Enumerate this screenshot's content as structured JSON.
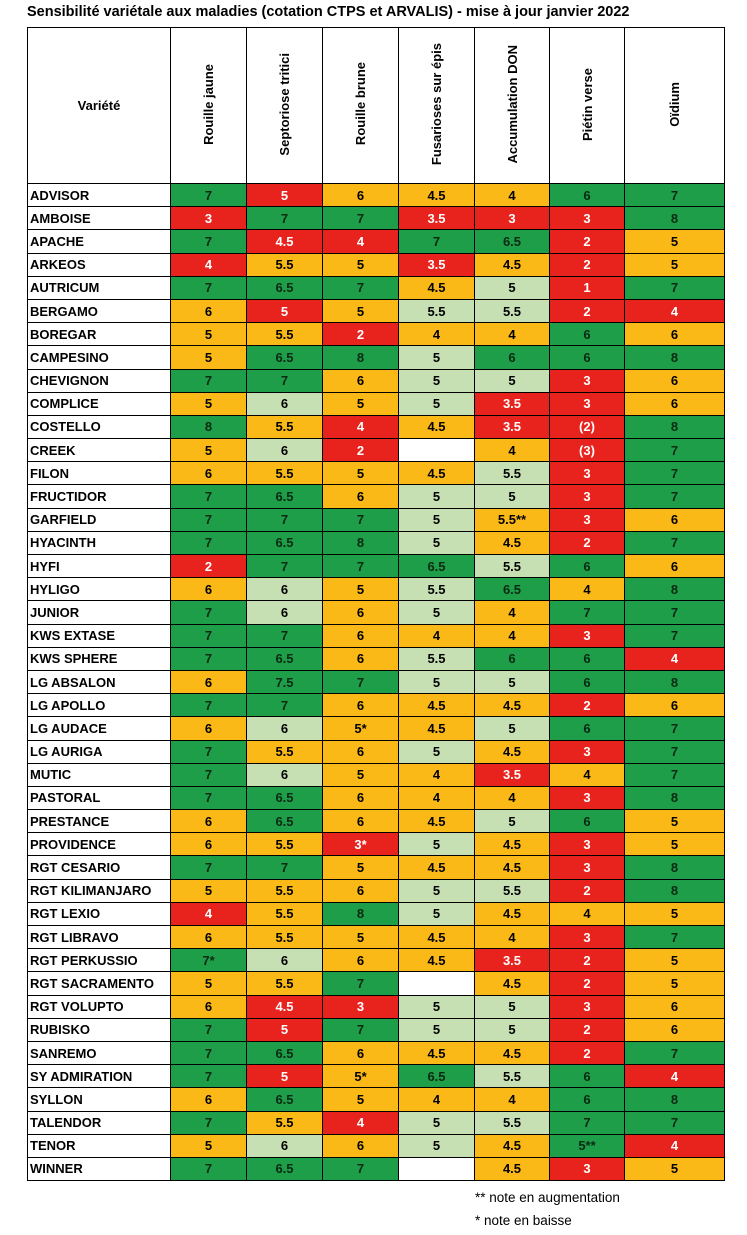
{
  "title": "Sensibilité variétale aux maladies (cotation CTPS et ARVALIS) - mise à jour janvier 2022",
  "table": {
    "header": [
      "Variété",
      "Rouille jaune",
      "Septoriose tritici",
      "Rouille brune",
      "Fusarioses sur épis",
      "Accumulation DON",
      "Piétin verse",
      "Oïdium"
    ],
    "palette": {
      "green": "#1f9e4a",
      "red": "#e8221d",
      "orange": "#fbb918",
      "lightgreen": "#c6e0b4",
      "white": "#ffffff"
    },
    "rows": [
      {
        "name": "ADVISOR",
        "values": [
          "7",
          "5",
          "6",
          "4.5",
          "4",
          "6",
          "7"
        ],
        "colors": [
          "green",
          "red",
          "orange",
          "orange",
          "orange",
          "green",
          "green"
        ]
      },
      {
        "name": "AMBOISE",
        "values": [
          "3",
          "7",
          "7",
          "3.5",
          "3",
          "3",
          "8"
        ],
        "colors": [
          "red",
          "green",
          "green",
          "red",
          "red",
          "red",
          "green"
        ]
      },
      {
        "name": "APACHE",
        "values": [
          "7",
          "4.5",
          "4",
          "7",
          "6.5",
          "2",
          "5"
        ],
        "colors": [
          "green",
          "red",
          "red",
          "green",
          "green",
          "red",
          "orange"
        ]
      },
      {
        "name": "ARKEOS",
        "values": [
          "4",
          "5.5",
          "5",
          "3.5",
          "4.5",
          "2",
          "5"
        ],
        "colors": [
          "red",
          "orange",
          "orange",
          "red",
          "orange",
          "red",
          "orange"
        ]
      },
      {
        "name": "AUTRICUM",
        "values": [
          "7",
          "6.5",
          "7",
          "4.5",
          "5",
          "1",
          "7"
        ],
        "colors": [
          "green",
          "green",
          "green",
          "orange",
          "lightgreen",
          "red",
          "green"
        ]
      },
      {
        "name": "BERGAMO",
        "values": [
          "6",
          "5",
          "5",
          "5.5",
          "5.5",
          "2",
          "4"
        ],
        "colors": [
          "orange",
          "red",
          "orange",
          "lightgreen",
          "lightgreen",
          "red",
          "red"
        ]
      },
      {
        "name": "BOREGAR",
        "values": [
          "5",
          "5.5",
          "2",
          "4",
          "4",
          "6",
          "6"
        ],
        "colors": [
          "orange",
          "orange",
          "red",
          "orange",
          "orange",
          "green",
          "orange"
        ]
      },
      {
        "name": "CAMPESINO",
        "values": [
          "5",
          "6.5",
          "8",
          "5",
          "6",
          "6",
          "8"
        ],
        "colors": [
          "orange",
          "green",
          "green",
          "lightgreen",
          "green",
          "green",
          "green"
        ]
      },
      {
        "name": "CHEVIGNON",
        "values": [
          "7",
          "7",
          "6",
          "5",
          "5",
          "3",
          "6"
        ],
        "colors": [
          "green",
          "green",
          "orange",
          "lightgreen",
          "lightgreen",
          "red",
          "orange"
        ]
      },
      {
        "name": "COMPLICE",
        "values": [
          "5",
          "6",
          "5",
          "5",
          "3.5",
          "3",
          "6"
        ],
        "colors": [
          "orange",
          "lightgreen",
          "orange",
          "lightgreen",
          "red",
          "red",
          "orange"
        ]
      },
      {
        "name": "COSTELLO",
        "values": [
          "8",
          "5.5",
          "4",
          "4.5",
          "3.5",
          "(2)",
          "8"
        ],
        "colors": [
          "green",
          "orange",
          "red",
          "orange",
          "red",
          "red",
          "green"
        ]
      },
      {
        "name": "CREEK",
        "values": [
          "5",
          "6",
          "2",
          null,
          "4",
          "(3)",
          "7"
        ],
        "colors": [
          "orange",
          "lightgreen",
          "red",
          "white",
          "orange",
          "red",
          "green"
        ]
      },
      {
        "name": "FILON",
        "values": [
          "6",
          "5.5",
          "5",
          "4.5",
          "5.5",
          "3",
          "7"
        ],
        "colors": [
          "orange",
          "orange",
          "orange",
          "orange",
          "lightgreen",
          "red",
          "green"
        ]
      },
      {
        "name": "FRUCTIDOR",
        "values": [
          "7",
          "6.5",
          "6",
          "5",
          "5",
          "3",
          "7"
        ],
        "colors": [
          "green",
          "green",
          "orange",
          "lightgreen",
          "lightgreen",
          "red",
          "green"
        ]
      },
      {
        "name": "GARFIELD",
        "values": [
          "7",
          "7",
          "7",
          "5",
          "5.5**",
          "3",
          "6"
        ],
        "colors": [
          "green",
          "green",
          "green",
          "lightgreen",
          "orange",
          "red",
          "orange"
        ]
      },
      {
        "name": "HYACINTH",
        "values": [
          "7",
          "6.5",
          "8",
          "5",
          "4.5",
          "2",
          "7"
        ],
        "colors": [
          "green",
          "green",
          "green",
          "lightgreen",
          "orange",
          "red",
          "green"
        ]
      },
      {
        "name": "HYFI",
        "values": [
          "2",
          "7",
          "7",
          "6.5",
          "5.5",
          "6",
          "6"
        ],
        "colors": [
          "red",
          "green",
          "green",
          "green",
          "lightgreen",
          "green",
          "orange"
        ]
      },
      {
        "name": "HYLIGO",
        "values": [
          "6",
          "6",
          "5",
          "5.5",
          "6.5",
          "4",
          "8"
        ],
        "colors": [
          "orange",
          "lightgreen",
          "orange",
          "lightgreen",
          "green",
          "orange",
          "green"
        ]
      },
      {
        "name": "JUNIOR",
        "values": [
          "7",
          "6",
          "6",
          "5",
          "4",
          "7",
          "7"
        ],
        "colors": [
          "green",
          "lightgreen",
          "orange",
          "lightgreen",
          "orange",
          "green",
          "green"
        ]
      },
      {
        "name": "KWS EXTASE",
        "values": [
          "7",
          "7",
          "6",
          "4",
          "4",
          "3",
          "7"
        ],
        "colors": [
          "green",
          "green",
          "orange",
          "orange",
          "orange",
          "red",
          "green"
        ]
      },
      {
        "name": "KWS SPHERE",
        "values": [
          "7",
          "6.5",
          "6",
          "5.5",
          "6",
          "6",
          "4"
        ],
        "colors": [
          "green",
          "green",
          "orange",
          "lightgreen",
          "green",
          "green",
          "red"
        ]
      },
      {
        "name": "LG ABSALON",
        "values": [
          "6",
          "7.5",
          "7",
          "5",
          "5",
          "6",
          "8"
        ],
        "colors": [
          "orange",
          "green",
          "green",
          "lightgreen",
          "lightgreen",
          "green",
          "green"
        ]
      },
      {
        "name": "LG APOLLO",
        "values": [
          "7",
          "7",
          "6",
          "4.5",
          "4.5",
          "2",
          "6"
        ],
        "colors": [
          "green",
          "green",
          "orange",
          "orange",
          "orange",
          "red",
          "orange"
        ]
      },
      {
        "name": "LG AUDACE",
        "values": [
          "6",
          "6",
          "5*",
          "4.5",
          "5",
          "6",
          "7"
        ],
        "colors": [
          "orange",
          "lightgreen",
          "orange",
          "orange",
          "lightgreen",
          "green",
          "green"
        ]
      },
      {
        "name": "LG AURIGA",
        "values": [
          "7",
          "5.5",
          "6",
          "5",
          "4.5",
          "3",
          "7"
        ],
        "colors": [
          "green",
          "orange",
          "orange",
          "lightgreen",
          "orange",
          "red",
          "green"
        ]
      },
      {
        "name": "MUTIC",
        "values": [
          "7",
          "6",
          "5",
          "4",
          "3.5",
          "4",
          "7"
        ],
        "colors": [
          "green",
          "lightgreen",
          "orange",
          "orange",
          "red",
          "orange",
          "green"
        ]
      },
      {
        "name": "PASTORAL",
        "values": [
          "7",
          "6.5",
          "6",
          "4",
          "4",
          "3",
          "8"
        ],
        "colors": [
          "green",
          "green",
          "orange",
          "orange",
          "orange",
          "red",
          "green"
        ]
      },
      {
        "name": "PRESTANCE",
        "values": [
          "6",
          "6.5",
          "6",
          "4.5",
          "5",
          "6",
          "5"
        ],
        "colors": [
          "orange",
          "green",
          "orange",
          "orange",
          "lightgreen",
          "green",
          "orange"
        ]
      },
      {
        "name": "PROVIDENCE",
        "values": [
          "6",
          "5.5",
          "3*",
          "5",
          "4.5",
          "3",
          "5"
        ],
        "colors": [
          "orange",
          "orange",
          "red",
          "lightgreen",
          "orange",
          "red",
          "orange"
        ]
      },
      {
        "name": "RGT CESARIO",
        "values": [
          "7",
          "7",
          "5",
          "4.5",
          "4.5",
          "3",
          "8"
        ],
        "colors": [
          "green",
          "green",
          "orange",
          "orange",
          "orange",
          "red",
          "green"
        ]
      },
      {
        "name": "RGT KILIMANJARO",
        "values": [
          "5",
          "5.5",
          "6",
          "5",
          "5.5",
          "2",
          "8"
        ],
        "colors": [
          "orange",
          "orange",
          "orange",
          "lightgreen",
          "lightgreen",
          "red",
          "green"
        ]
      },
      {
        "name": "RGT LEXIO",
        "values": [
          "4",
          "5.5",
          "8",
          "5",
          "4.5",
          "4",
          "5"
        ],
        "colors": [
          "red",
          "orange",
          "green",
          "lightgreen",
          "orange",
          "orange",
          "orange"
        ]
      },
      {
        "name": "RGT LIBRAVO",
        "values": [
          "6",
          "5.5",
          "5",
          "4.5",
          "4",
          "3",
          "7"
        ],
        "colors": [
          "orange",
          "orange",
          "orange",
          "orange",
          "orange",
          "red",
          "green"
        ]
      },
      {
        "name": "RGT PERKUSSIO",
        "values": [
          "7*",
          "6",
          "6",
          "4.5",
          "3.5",
          "2",
          "5"
        ],
        "colors": [
          "green",
          "lightgreen",
          "orange",
          "orange",
          "red",
          "red",
          "orange"
        ]
      },
      {
        "name": "RGT SACRAMENTO",
        "values": [
          "5",
          "5.5",
          "7",
          null,
          "4.5",
          "2",
          "5"
        ],
        "colors": [
          "orange",
          "orange",
          "green",
          "white",
          "orange",
          "red",
          "orange"
        ]
      },
      {
        "name": "RGT VOLUPTO",
        "values": [
          "6",
          "4.5",
          "3",
          "5",
          "5",
          "3",
          "6"
        ],
        "colors": [
          "orange",
          "red",
          "red",
          "lightgreen",
          "lightgreen",
          "red",
          "orange"
        ]
      },
      {
        "name": "RUBISKO",
        "values": [
          "7",
          "5",
          "7",
          "5",
          "5",
          "2",
          "6"
        ],
        "colors": [
          "green",
          "red",
          "green",
          "lightgreen",
          "lightgreen",
          "red",
          "orange"
        ]
      },
      {
        "name": "SANREMO",
        "values": [
          "7",
          "6.5",
          "6",
          "4.5",
          "4.5",
          "2",
          "7"
        ],
        "colors": [
          "green",
          "green",
          "orange",
          "orange",
          "orange",
          "red",
          "green"
        ]
      },
      {
        "name": "SY ADMIRATION",
        "values": [
          "7",
          "5",
          "5*",
          "6.5",
          "5.5",
          "6",
          "4"
        ],
        "colors": [
          "green",
          "red",
          "orange",
          "green",
          "lightgreen",
          "green",
          "red"
        ]
      },
      {
        "name": "SYLLON",
        "values": [
          "6",
          "6.5",
          "5",
          "4",
          "4",
          "6",
          "8"
        ],
        "colors": [
          "orange",
          "green",
          "orange",
          "orange",
          "orange",
          "green",
          "green"
        ]
      },
      {
        "name": "TALENDOR",
        "values": [
          "7",
          "5.5",
          "4",
          "5",
          "5.5",
          "7",
          "7"
        ],
        "colors": [
          "green",
          "orange",
          "red",
          "lightgreen",
          "lightgreen",
          "green",
          "green"
        ]
      },
      {
        "name": "TENOR",
        "values": [
          "5",
          "6",
          "6",
          "5",
          "4.5",
          "5**",
          "4"
        ],
        "colors": [
          "orange",
          "lightgreen",
          "orange",
          "lightgreen",
          "orange",
          "green",
          "red"
        ]
      },
      {
        "name": "WINNER",
        "values": [
          "7",
          "6.5",
          "7",
          null,
          "4.5",
          "3",
          "5"
        ],
        "colors": [
          "green",
          "green",
          "green",
          "white",
          "orange",
          "red",
          "orange"
        ]
      }
    ]
  },
  "footnotes": [
    "** note en augmentation",
    "* note en baisse"
  ]
}
